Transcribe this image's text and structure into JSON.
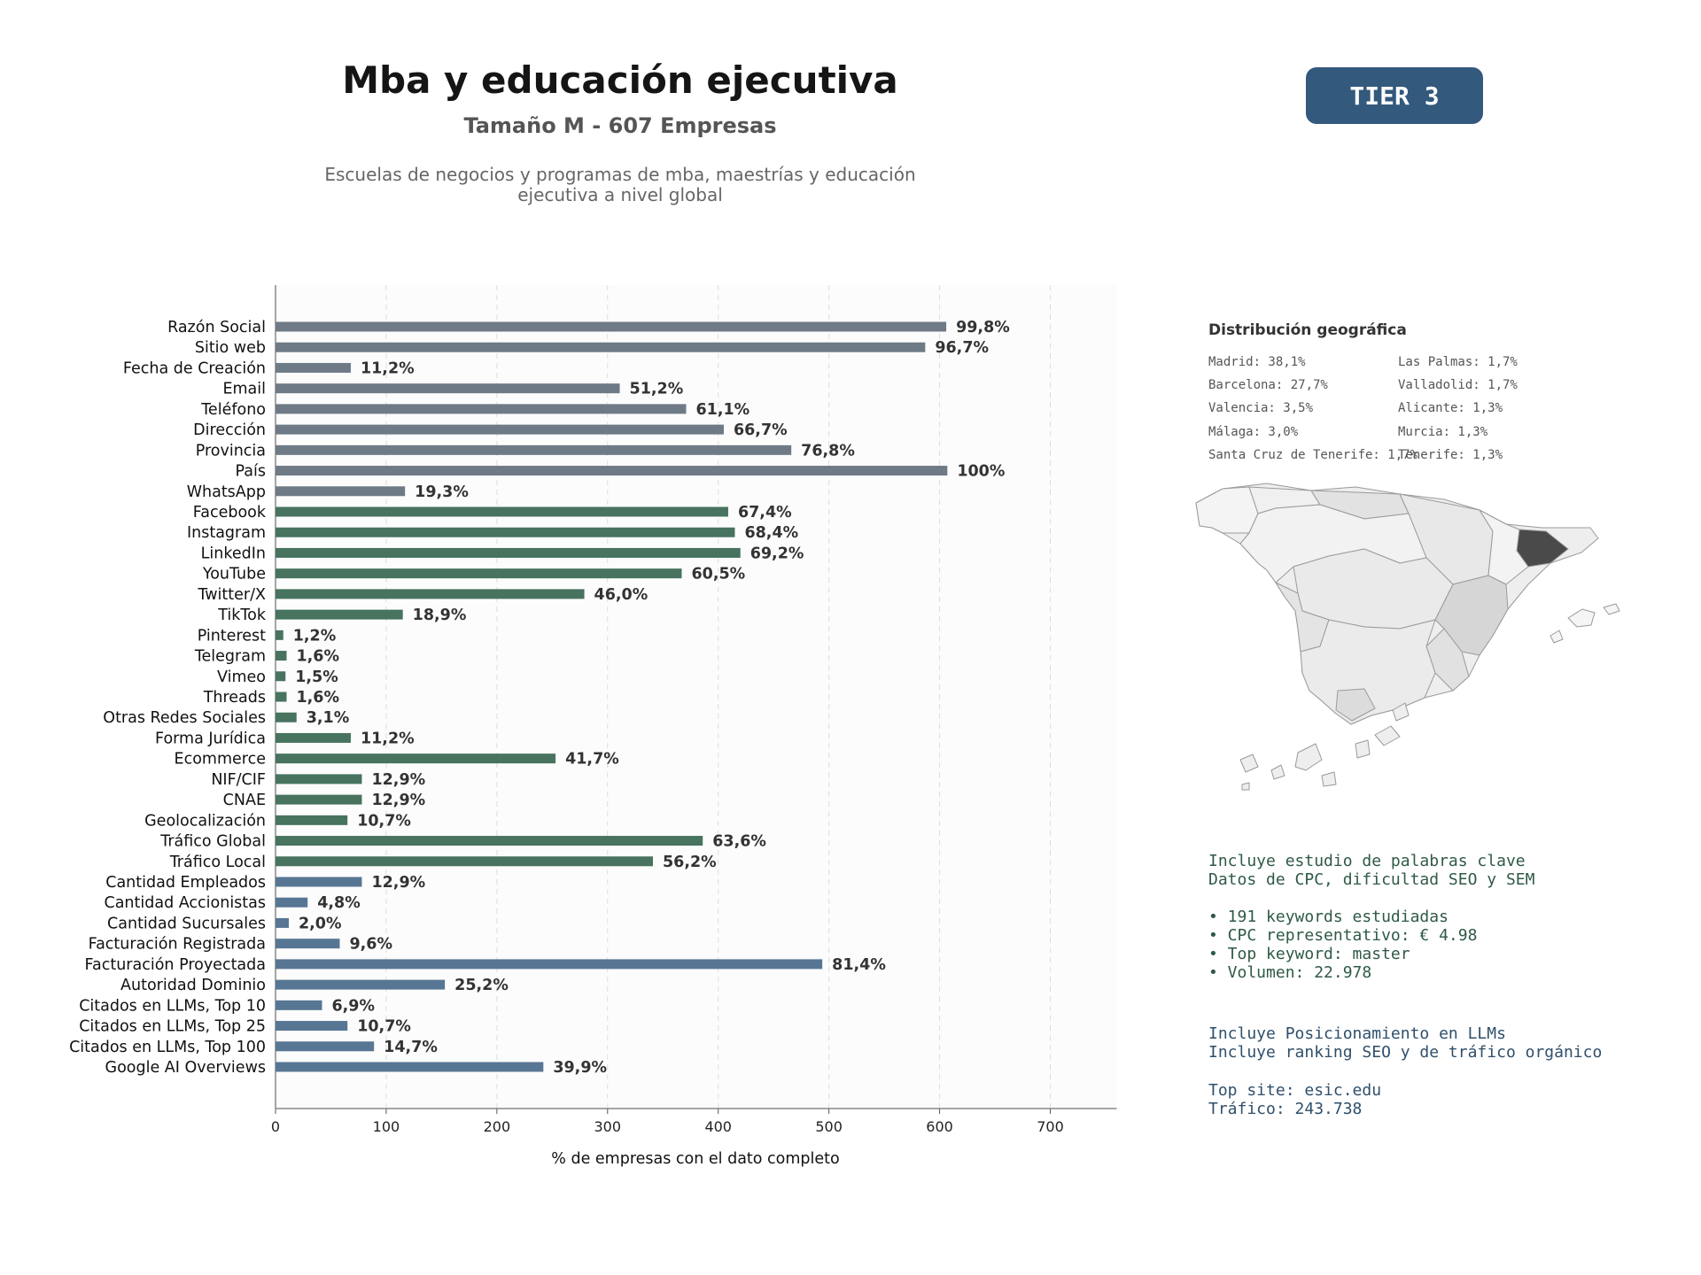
{
  "header": {
    "title": "Mba y educación ejecutiva",
    "subtitle": "Tamaño M - 607 Empresas",
    "description_line1": "Escuelas de negocios y programas de mba, maestrías y educación",
    "description_line2": "ejecutiva a nivel global",
    "tier": "TIER 3"
  },
  "colors": {
    "tier_badge": "#33597c",
    "gray_bars": "#6e7a85",
    "green_bars": "#47735f",
    "blue_bars": "#577693"
  },
  "chart_data": {
    "type": "bar",
    "orientation": "horizontal",
    "xlabel": "% de empresas con el dato completo",
    "xlim": [
      0,
      760
    ],
    "xticks": [
      0,
      100,
      200,
      300,
      400,
      500,
      600,
      700
    ],
    "grid": "vertical dashed",
    "categories": [
      "Razón Social",
      "Sitio web",
      "Fecha de Creación",
      "Email",
      "Teléfono",
      "Dirección",
      "Provincia",
      "País",
      "WhatsApp",
      "Facebook",
      "Instagram",
      "LinkedIn",
      "YouTube",
      "Twitter/X",
      "TikTok",
      "Pinterest",
      "Telegram",
      "Vimeo",
      "Threads",
      "Otras Redes Sociales",
      "Forma Jurídica",
      "Ecommerce",
      "NIF/CIF",
      "CNAE",
      "Geolocalización",
      "Tráfico Global",
      "Tráfico Local",
      "Cantidad Empleados",
      "Cantidad Accionistas",
      "Cantidad Sucursales",
      "Facturación Registrada",
      "Facturación Proyectada",
      "Autoridad Dominio",
      "Citados en LLMs, Top 10",
      "Citados en LLMs, Top 25",
      "Citados en LLMs, Top 100",
      "Google AI Overviews"
    ],
    "values": [
      606,
      587,
      68,
      311,
      371,
      405,
      466,
      607,
      117,
      409,
      415,
      420,
      367,
      279,
      115,
      7,
      10,
      9,
      10,
      19,
      68,
      253,
      78,
      78,
      65,
      386,
      341,
      78,
      29,
      12,
      58,
      494,
      153,
      42,
      65,
      89,
      242
    ],
    "labels": [
      "99,8%",
      "96,7%",
      "11,2%",
      "51,2%",
      "61,1%",
      "66,7%",
      "76,8%",
      "100%",
      "19,3%",
      "67,4%",
      "68,4%",
      "69,2%",
      "60,5%",
      "46,0%",
      "18,9%",
      "1,2%",
      "1,6%",
      "1,5%",
      "1,6%",
      "3,1%",
      "11,2%",
      "41,7%",
      "12,9%",
      "12,9%",
      "10,7%",
      "63,6%",
      "56,2%",
      "12,9%",
      "4,8%",
      "2,0%",
      "9,6%",
      "81,4%",
      "25,2%",
      "6,9%",
      "10,7%",
      "14,7%",
      "39,9%"
    ],
    "groups": [
      "gray",
      "gray",
      "gray",
      "gray",
      "gray",
      "gray",
      "gray",
      "gray",
      "gray",
      "green",
      "green",
      "green",
      "green",
      "green",
      "green",
      "green",
      "green",
      "green",
      "green",
      "green",
      "green",
      "green",
      "green",
      "green",
      "green",
      "green",
      "green",
      "blue",
      "blue",
      "blue",
      "blue",
      "blue",
      "blue",
      "blue",
      "blue",
      "blue",
      "blue"
    ]
  },
  "geo": {
    "title": "Distribución geográfica",
    "col1": [
      "Madrid: 38,1%",
      "Barcelona: 27,7%",
      "Valencia: 3,5%",
      "Málaga: 3,0%",
      "Santa Cruz de Tenerife: 1,7%"
    ],
    "col2": [
      "Las Palmas: 1,7%",
      "Valladolid: 1,7%",
      "Alicante: 1,3%",
      "Murcia: 1,3%",
      "Tenerife: 1,3%"
    ]
  },
  "keywords": {
    "line1": "Incluye estudio de palabras clave",
    "line2": "Datos de CPC, dificultad SEO y SEM",
    "bullets": [
      "• 191 keywords estudiadas",
      "• CPC representativo: € 4.98",
      "• Top keyword: master",
      "• Volumen: 22.978"
    ]
  },
  "llm": {
    "line1": "Incluye Posicionamiento en LLMs",
    "line2": "Incluye ranking SEO y de tráfico orgánico",
    "top_site": "Top site: esic.edu",
    "traffic": "Tráfico: 243.738"
  }
}
